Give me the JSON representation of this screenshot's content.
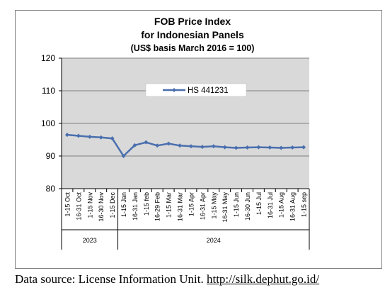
{
  "chart_data": {
    "type": "line",
    "title": [
      "FOB Price Index",
      "for Indonesian Panels",
      "(US$ basis March 2016 = 100)"
    ],
    "categories": [
      "1-15 Oct",
      "16-31 Oct",
      "1-15 Nov",
      "16-30 Nov",
      "1-15 Dec",
      "1-15 Jan",
      "16-31 Jan",
      "1-15 feb",
      "16-29 Feb",
      "1-15 Mar",
      "16-31 Mar",
      "1-15 Apr",
      "16-31 Apr",
      "1-15 May",
      "16-31 May",
      "1-15 Jun",
      "16-30 Jun",
      "1-15 Jul",
      "16-31 Jul",
      "1-15 Aug",
      "16-31 Aug",
      "1-15 sep"
    ],
    "year_groups": [
      {
        "label": "2023",
        "count": 5
      },
      {
        "label": "2024",
        "count": 17
      }
    ],
    "series": [
      {
        "name": "HS 441231",
        "values": [
          96.5,
          96.2,
          95.9,
          95.7,
          95.4,
          90.0,
          93.3,
          94.2,
          93.2,
          93.8,
          93.2,
          93.0,
          92.8,
          93.0,
          92.7,
          92.5,
          92.6,
          92.7,
          92.6,
          92.5,
          92.6,
          92.7
        ]
      }
    ],
    "ylim": [
      80,
      120
    ],
    "yticks": [
      "80",
      "90",
      "100",
      "110",
      "120"
    ],
    "grid": true,
    "legend": "top-center",
    "colors": {
      "line": "#4a6fae",
      "plot_bg": "#d9d9d9",
      "grid": "#7f7f7f"
    }
  },
  "source": {
    "text": "Data source: License Information Unit. ",
    "link": "http://silk.dephut.go.id/"
  }
}
